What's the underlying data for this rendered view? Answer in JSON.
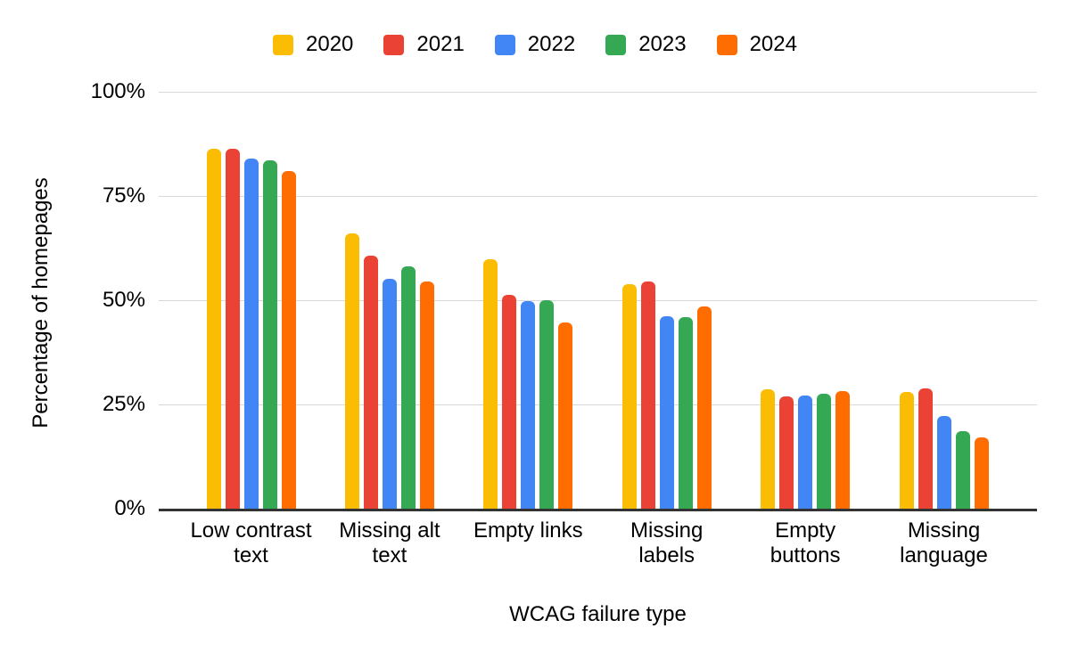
{
  "chart_data": {
    "type": "bar",
    "title": "",
    "xlabel": "WCAG failure type",
    "ylabel": "Percentage of homepages",
    "categories": [
      "Low contrast text",
      "Missing alt text",
      "Empty links",
      "Missing labels",
      "Empty buttons",
      "Missing language"
    ],
    "category_labels_display": [
      "Low contrast\ntext",
      "Missing alt\ntext",
      "Empty links",
      "Missing\nlabels",
      "Empty\nbuttons",
      "Missing\nlanguage"
    ],
    "series": [
      {
        "name": "2020",
        "color": "#FBBC04",
        "values": [
          86.3,
          66.0,
          59.9,
          53.8,
          28.7,
          28.0
        ]
      },
      {
        "name": "2021",
        "color": "#EA4335",
        "values": [
          86.4,
          60.6,
          51.3,
          54.4,
          26.9,
          28.9
        ]
      },
      {
        "name": "2022",
        "color": "#4285F4",
        "values": [
          83.9,
          55.1,
          49.7,
          46.1,
          27.2,
          22.3
        ]
      },
      {
        "name": "2023",
        "color": "#34A853",
        "values": [
          83.6,
          58.2,
          50.1,
          45.9,
          27.5,
          18.6
        ]
      },
      {
        "name": "2024",
        "color": "#FF6D01",
        "values": [
          81.0,
          54.5,
          44.6,
          48.6,
          28.2,
          17.1
        ]
      }
    ],
    "y_ticks": [
      {
        "label": "0%",
        "value": 0
      },
      {
        "label": "25%",
        "value": 25
      },
      {
        "label": "50%",
        "value": 50
      },
      {
        "label": "75%",
        "value": 75
      },
      {
        "label": "100%",
        "value": 100
      }
    ],
    "ylim": [
      0,
      100
    ],
    "grid": true,
    "legend_position": "top",
    "colors": {
      "gridline": "#d9d9d9",
      "baseline": "#333333",
      "text": "#000000"
    }
  }
}
